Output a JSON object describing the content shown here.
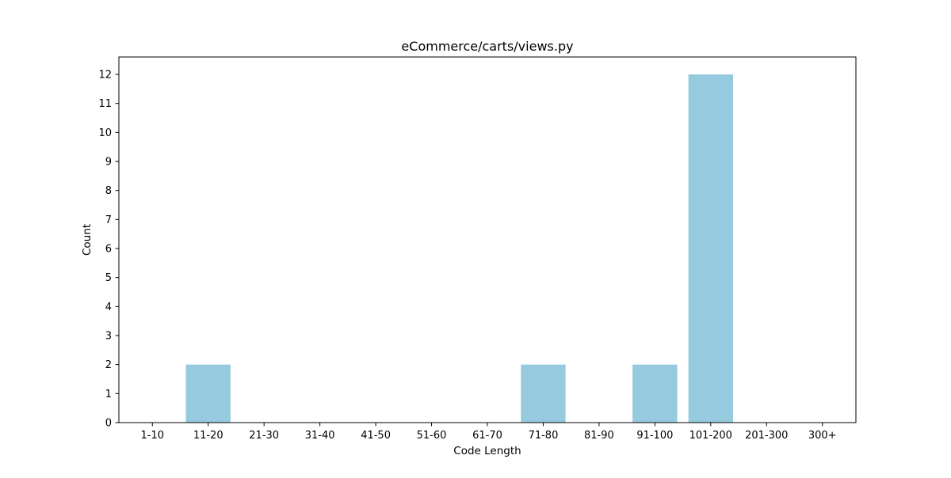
{
  "chart_data": {
    "type": "bar",
    "title": "eCommerce/carts/views.py",
    "xlabel": "Code Length",
    "ylabel": "Count",
    "categories": [
      "1-10",
      "11-20",
      "21-30",
      "31-40",
      "41-50",
      "51-60",
      "61-70",
      "71-80",
      "81-90",
      "91-100",
      "101-200",
      "201-300",
      "300+"
    ],
    "values": [
      0,
      2,
      0,
      0,
      0,
      0,
      0,
      2,
      0,
      2,
      12,
      0,
      0
    ],
    "ylim": [
      0,
      12.6
    ],
    "yticks": [
      0,
      1,
      2,
      3,
      4,
      5,
      6,
      7,
      8,
      9,
      10,
      11,
      12
    ],
    "bar_color": "#96cade",
    "grid": false,
    "legend": "none"
  }
}
